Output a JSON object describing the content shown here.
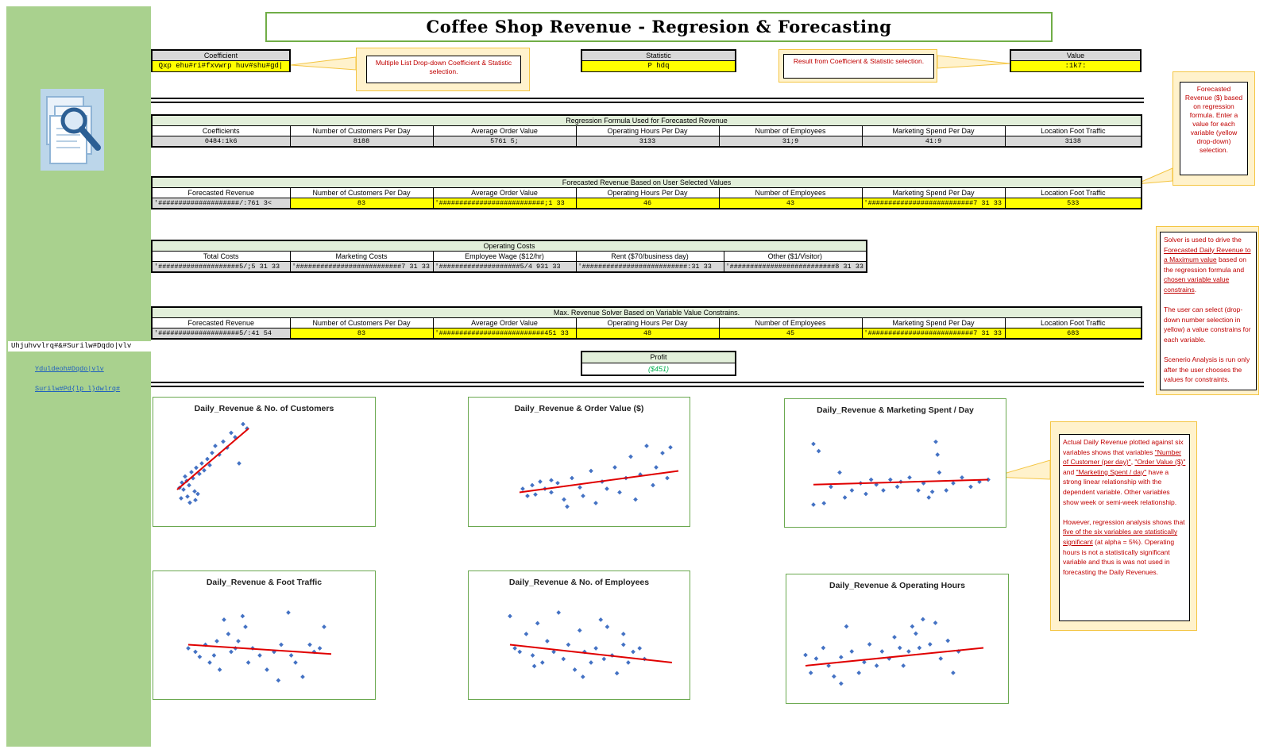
{
  "title": "Coffee Shop Revenue -  Regresion & Forecasting",
  "sidebar": {
    "label": "Uhjuhvvlrq#&#Surilw#Dqdo|vlv",
    "links": [
      "Yduldeoh#Dqdo|vlv",
      "Surilw#Pd{lp l}dwlrq#"
    ]
  },
  "selectors": {
    "coefficient": {
      "header": "Coefficient",
      "value": "Qxp ehu#ri#fxvwrp huv#shu#gd|"
    },
    "statistic": {
      "header": "Statistic",
      "value": "P hdq"
    },
    "value": {
      "header": "Value",
      "value": ":1k7:"
    }
  },
  "callouts": {
    "dropdown": "Multiple List Drop-down Coefficient & Statistic selection.",
    "result": "Result from Coefficient & Statistic selection.",
    "forecast": "Forecasted Revenue ($) based on regression formula. Enter a value for each variable (yellow drop-down) selection."
  },
  "regression": {
    "caption": "Regression Formula Used for Forecasted Revenue",
    "headers": [
      "Coefficients",
      "Number of Customers Per Day",
      "Average Order Value",
      "Operating Hours Per Day",
      "Number of Employees",
      "Marketing Spend Per Day",
      "Location Foot Traffic"
    ],
    "values": [
      "0484:1k6",
      "8188",
      "5761 5;",
      "3133",
      "31;9",
      "41:9",
      "3138"
    ]
  },
  "forecast": {
    "caption": "Forecasted Revenue Based on User Selected Values",
    "headers": [
      "Forecasted Revenue",
      "Number of Customers Per Day",
      "Average Order Value",
      "Operating Hours Per Day",
      "Number of Employees",
      "Marketing Spend Per Day",
      "Location Foot Traffic"
    ],
    "values": [
      "'####################/:761 3<",
      "83",
      "'##########################;1 33",
      "46",
      "43",
      "'##########################7 31 33",
      "533"
    ]
  },
  "costs": {
    "caption": "Operating Costs",
    "headers": [
      "Total Costs",
      "Marketing Costs",
      "Employee Wage ($12/hr)",
      "Rent ($70/business day)",
      "Other ($1/Visitor)"
    ],
    "values": [
      "'####################5/;5 31 33",
      "'##########################7 31 33",
      "'####################5/4 931 33",
      "'##########################:31 33",
      "'##########################8 31 33"
    ]
  },
  "solver": {
    "caption": "Max. Revenue Solver Based on Variable Value Constrains.",
    "headers": [
      "Forecasted Revenue",
      "Number of Customers Per Day",
      "Average Order Value",
      "Operating Hours Per Day",
      "Number of Employees",
      "Marketing Spend Per Day",
      "Location Foot Traffic"
    ],
    "values": [
      "'####################5/:41 54",
      "83",
      "'##########################451 33",
      "48",
      "45",
      "'##########################7 31 33",
      "683"
    ]
  },
  "profit": {
    "header": "Profit",
    "value": "($451)"
  },
  "solver_note": {
    "p1_a": "Solver is used to drive the ",
    "p1_u1": "Forecasted Daily Revenue to a Maximum value",
    "p1_b": " based on the regression formula and ",
    "p1_u2": "chosen variable value constrains",
    "p1_c": ".",
    "p2": "The user can select (drop-down number selection in yellow) a value constrains for each variable.",
    "p3": "Scenerio Analysis is run only after the user chooses the values for constraints."
  },
  "analysis_note": {
    "p1_a": "Actual Daily Revenue plotted against six variables shows that variables ",
    "p1_u1": "\"Number of Customer (per day)\"",
    "p1_b": ", ",
    "p1_u2": "\"Order Value ($)\"",
    "p1_c": " and ",
    "p1_u3": "\"Marketing Spent / day\"",
    "p1_d": " have a strong linear relationship with the dependent variable. Other variables show week or semi-week relationship.",
    "p2_a": "However, regression analysis shows that ",
    "p2_u": "five of the six variables are statistically significant",
    "p2_b": " (at alpha = 5%). Operating hours is not a statistically significant variable and thus is was not used in forecasting the Daily Revenues."
  },
  "colors": {
    "sidebar": "#a9d18e",
    "highlight": "#ffff00",
    "accent_red": "#c00000",
    "point": "#4472c4",
    "trend": "#e00000",
    "profit_green": "#00b050"
  },
  "chart_data": [
    {
      "type": "scatter",
      "title": "Daily_Revenue & No. of Customers",
      "points": [
        [
          0.05,
          0.22
        ],
        [
          0.08,
          0.28
        ],
        [
          0.1,
          0.2
        ],
        [
          0.12,
          0.35
        ],
        [
          0.14,
          0.3
        ],
        [
          0.15,
          0.12
        ],
        [
          0.17,
          0.25
        ],
        [
          0.2,
          0.4
        ],
        [
          0.22,
          0.33
        ],
        [
          0.24,
          0.18
        ],
        [
          0.26,
          0.45
        ],
        [
          0.3,
          0.38
        ],
        [
          0.33,
          0.5
        ],
        [
          0.36,
          0.42
        ],
        [
          0.4,
          0.55
        ],
        [
          0.43,
          0.48
        ],
        [
          0.46,
          0.62
        ],
        [
          0.5,
          0.7
        ],
        [
          0.55,
          0.6
        ],
        [
          0.6,
          0.75
        ],
        [
          0.65,
          0.68
        ],
        [
          0.7,
          0.85
        ],
        [
          0.75,
          0.8
        ],
        [
          0.8,
          0.5
        ],
        [
          0.85,
          0.95
        ],
        [
          0.9,
          0.9
        ],
        [
          0.07,
          0.1
        ],
        [
          0.18,
          0.05
        ],
        [
          0.25,
          0.08
        ],
        [
          0.28,
          0.15
        ]
      ],
      "trend": [
        [
          0.02,
          0.2
        ],
        [
          0.92,
          0.9
        ]
      ]
    },
    {
      "type": "scatter",
      "title": "Daily_Revenue & Order Value ($)",
      "points": [
        [
          0.02,
          0.3
        ],
        [
          0.05,
          0.2
        ],
        [
          0.08,
          0.35
        ],
        [
          0.1,
          0.22
        ],
        [
          0.13,
          0.4
        ],
        [
          0.16,
          0.3
        ],
        [
          0.2,
          0.25
        ],
        [
          0.24,
          0.38
        ],
        [
          0.28,
          0.15
        ],
        [
          0.3,
          0.05
        ],
        [
          0.33,
          0.45
        ],
        [
          0.38,
          0.32
        ],
        [
          0.4,
          0.2
        ],
        [
          0.45,
          0.55
        ],
        [
          0.48,
          0.1
        ],
        [
          0.52,
          0.4
        ],
        [
          0.55,
          0.3
        ],
        [
          0.6,
          0.6
        ],
        [
          0.63,
          0.25
        ],
        [
          0.67,
          0.45
        ],
        [
          0.7,
          0.75
        ],
        [
          0.73,
          0.15
        ],
        [
          0.76,
          0.5
        ],
        [
          0.8,
          0.9
        ],
        [
          0.84,
          0.35
        ],
        [
          0.86,
          0.6
        ],
        [
          0.9,
          0.8
        ],
        [
          0.93,
          0.45
        ],
        [
          0.95,
          0.88
        ],
        [
          0.2,
          0.42
        ]
      ],
      "trend": [
        [
          0.0,
          0.25
        ],
        [
          1.0,
          0.55
        ]
      ]
    },
    {
      "type": "scatter",
      "title": "Daily_Revenue & Marketing Spent / Day",
      "points": [
        [
          0.0,
          0.95
        ],
        [
          0.03,
          0.85
        ],
        [
          0.0,
          0.1
        ],
        [
          0.06,
          0.12
        ],
        [
          0.1,
          0.35
        ],
        [
          0.15,
          0.55
        ],
        [
          0.18,
          0.2
        ],
        [
          0.22,
          0.3
        ],
        [
          0.27,
          0.4
        ],
        [
          0.3,
          0.25
        ],
        [
          0.33,
          0.45
        ],
        [
          0.36,
          0.38
        ],
        [
          0.4,
          0.3
        ],
        [
          0.44,
          0.45
        ],
        [
          0.48,
          0.35
        ],
        [
          0.5,
          0.42
        ],
        [
          0.55,
          0.48
        ],
        [
          0.6,
          0.3
        ],
        [
          0.63,
          0.4
        ],
        [
          0.66,
          0.2
        ],
        [
          0.68,
          0.28
        ],
        [
          0.7,
          0.98
        ],
        [
          0.71,
          0.8
        ],
        [
          0.72,
          0.55
        ],
        [
          0.76,
          0.3
        ],
        [
          0.8,
          0.4
        ],
        [
          0.85,
          0.48
        ],
        [
          0.9,
          0.35
        ],
        [
          0.95,
          0.42
        ],
        [
          1.0,
          0.45
        ]
      ],
      "trend": [
        [
          0.0,
          0.38
        ],
        [
          1.0,
          0.45
        ]
      ]
    },
    {
      "type": "scatter",
      "title": "Daily_Revenue & Foot Traffic",
      "points": [
        [
          0.0,
          0.5
        ],
        [
          0.05,
          0.45
        ],
        [
          0.08,
          0.38
        ],
        [
          0.12,
          0.55
        ],
        [
          0.15,
          0.3
        ],
        [
          0.18,
          0.4
        ],
        [
          0.2,
          0.6
        ],
        [
          0.22,
          0.2
        ],
        [
          0.25,
          0.9
        ],
        [
          0.28,
          0.7
        ],
        [
          0.3,
          0.45
        ],
        [
          0.33,
          0.5
        ],
        [
          0.35,
          0.6
        ],
        [
          0.38,
          0.95
        ],
        [
          0.4,
          0.8
        ],
        [
          0.42,
          0.3
        ],
        [
          0.45,
          0.5
        ],
        [
          0.5,
          0.4
        ],
        [
          0.55,
          0.2
        ],
        [
          0.6,
          0.45
        ],
        [
          0.63,
          0.05
        ],
        [
          0.65,
          0.55
        ],
        [
          0.7,
          1.0
        ],
        [
          0.72,
          0.4
        ],
        [
          0.75,
          0.3
        ],
        [
          0.8,
          0.1
        ],
        [
          0.85,
          0.55
        ],
        [
          0.88,
          0.45
        ],
        [
          0.92,
          0.5
        ],
        [
          0.95,
          0.8
        ]
      ],
      "trend": [
        [
          0.0,
          0.55
        ],
        [
          1.0,
          0.42
        ]
      ]
    },
    {
      "type": "scatter",
      "title": "Daily_Revenue & No. of Employees",
      "points": [
        [
          0.0,
          0.95
        ],
        [
          0.03,
          0.5
        ],
        [
          0.06,
          0.45
        ],
        [
          0.1,
          0.7
        ],
        [
          0.14,
          0.4
        ],
        [
          0.17,
          0.85
        ],
        [
          0.2,
          0.3
        ],
        [
          0.23,
          0.6
        ],
        [
          0.27,
          0.45
        ],
        [
          0.3,
          1.0
        ],
        [
          0.33,
          0.35
        ],
        [
          0.36,
          0.55
        ],
        [
          0.4,
          0.2
        ],
        [
          0.43,
          0.75
        ],
        [
          0.46,
          0.45
        ],
        [
          0.5,
          0.3
        ],
        [
          0.53,
          0.5
        ],
        [
          0.56,
          0.9
        ],
        [
          0.58,
          0.35
        ],
        [
          0.6,
          0.8
        ],
        [
          0.63,
          0.4
        ],
        [
          0.66,
          0.15
        ],
        [
          0.7,
          0.55
        ],
        [
          0.73,
          0.3
        ],
        [
          0.76,
          0.45
        ],
        [
          0.8,
          0.5
        ],
        [
          0.83,
          0.35
        ],
        [
          0.15,
          0.25
        ],
        [
          0.45,
          0.1
        ],
        [
          0.7,
          0.7
        ]
      ],
      "trend": [
        [
          0.0,
          0.55
        ],
        [
          1.0,
          0.3
        ]
      ]
    },
    {
      "type": "scatter",
      "title": "Daily_Revenue & Operating Hours",
      "points": [
        [
          0.0,
          0.45
        ],
        [
          0.03,
          0.2
        ],
        [
          0.06,
          0.4
        ],
        [
          0.1,
          0.55
        ],
        [
          0.13,
          0.3
        ],
        [
          0.16,
          0.15
        ],
        [
          0.2,
          0.42
        ],
        [
          0.23,
          0.85
        ],
        [
          0.26,
          0.5
        ],
        [
          0.3,
          0.2
        ],
        [
          0.33,
          0.35
        ],
        [
          0.36,
          0.6
        ],
        [
          0.4,
          0.3
        ],
        [
          0.43,
          0.5
        ],
        [
          0.47,
          0.4
        ],
        [
          0.5,
          0.7
        ],
        [
          0.53,
          0.55
        ],
        [
          0.55,
          0.3
        ],
        [
          0.58,
          0.5
        ],
        [
          0.6,
          0.85
        ],
        [
          0.62,
          0.75
        ],
        [
          0.64,
          0.55
        ],
        [
          0.66,
          0.95
        ],
        [
          0.7,
          0.6
        ],
        [
          0.73,
          0.9
        ],
        [
          0.76,
          0.4
        ],
        [
          0.8,
          0.65
        ],
        [
          0.83,
          0.2
        ],
        [
          0.86,
          0.5
        ],
        [
          0.2,
          0.05
        ]
      ],
      "trend": [
        [
          0.0,
          0.3
        ],
        [
          1.0,
          0.55
        ]
      ]
    }
  ]
}
